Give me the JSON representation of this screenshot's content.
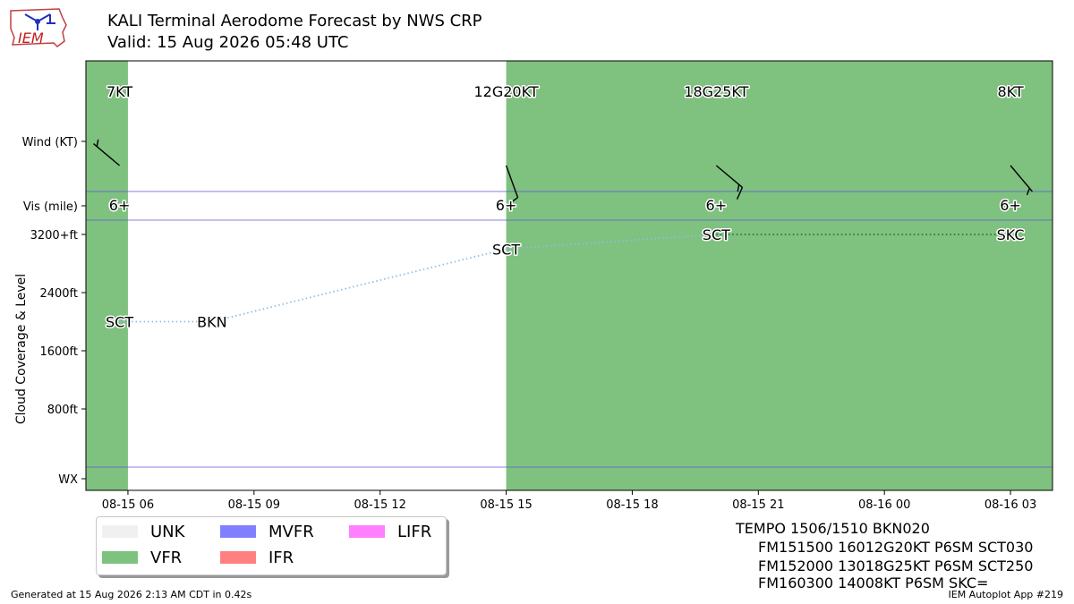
{
  "header": {
    "logo_text": "IEM",
    "title": "KALI Terminal Aerodome Forecast by NWS CRP",
    "valid": "Valid: 15 Aug 2026 05:48 UTC"
  },
  "footer": {
    "generated": "Generated at 15 Aug 2026 2:13 AM CDT in 0.42s",
    "app": "IEM Autoplot App #219"
  },
  "colors": {
    "UNK": "#f0f0f0",
    "VFR": "#7fc17f",
    "MVFR": "#8080ff",
    "IFR": "#ff8080",
    "LIFR": "#ff80ff",
    "low_cloud_line": "#8fbde0",
    "high_cloud_line": "#1e7a3c"
  },
  "legend": [
    {
      "label": "UNK",
      "color_key": "UNK"
    },
    {
      "label": "VFR",
      "color_key": "VFR"
    },
    {
      "label": "MVFR",
      "color_key": "MVFR"
    },
    {
      "label": "IFR",
      "color_key": "IFR"
    },
    {
      "label": "LIFR",
      "color_key": "LIFR"
    }
  ],
  "taf_text": [
    "TEMPO 1506/1510 BKN020",
    "FM151500 16012G20KT P6SM SCT030",
    "FM152000 13018G25KT P6SM SCT250",
    "FM160300 14008KT P6SM SKC="
  ],
  "chart_data": {
    "type": "timeline",
    "x_start": "2026-08-15 05:00",
    "x_end": "2026-08-16 04:00",
    "x_ticks": [
      {
        "time": "2026-08-15 06:00",
        "label": "08-15 06"
      },
      {
        "time": "2026-08-15 09:00",
        "label": "08-15 09"
      },
      {
        "time": "2026-08-15 12:00",
        "label": "08-15 12"
      },
      {
        "time": "2026-08-15 15:00",
        "label": "08-15 15"
      },
      {
        "time": "2026-08-15 18:00",
        "label": "08-15 18"
      },
      {
        "time": "2026-08-15 21:00",
        "label": "08-15 21"
      },
      {
        "time": "2026-08-16 00:00",
        "label": "08-16 00"
      },
      {
        "time": "2026-08-16 03:00",
        "label": "08-16 03"
      }
    ],
    "y_label": "Cloud Coverage & Level",
    "row_labels": {
      "wind": "Wind (KT)",
      "vis": "Vis (mile)",
      "wx": "WX"
    },
    "cloud_axis": {
      "ylim": [
        0,
        3500
      ],
      "ticks": [
        {
          "value": 800,
          "label": "800ft"
        },
        {
          "value": 1600,
          "label": "1600ft"
        },
        {
          "value": 2400,
          "label": "2400ft"
        },
        {
          "value": 3200,
          "label": "3200+ft"
        }
      ]
    },
    "category_bands": [
      {
        "start": "2026-08-15 05:00",
        "end": "2026-08-15 06:00",
        "category": "VFR"
      },
      {
        "start": "2026-08-15 06:00",
        "end": "2026-08-15 15:00",
        "category": "none"
      },
      {
        "start": "2026-08-15 15:00",
        "end": "2026-08-16 04:00",
        "category": "VFR"
      }
    ],
    "forecasts": [
      {
        "time": "2026-08-15 05:48",
        "wind_label": "7KT",
        "wind_dir": 310,
        "wind_speed": 7,
        "vis": "6+"
      },
      {
        "time": "2026-08-15 15:00",
        "wind_label": "12G20KT",
        "wind_dir": 160,
        "wind_speed": 12,
        "vis": "6+"
      },
      {
        "time": "2026-08-15 20:00",
        "wind_label": "18G25KT",
        "wind_dir": 130,
        "wind_speed": 18,
        "vis": "6+"
      },
      {
        "time": "2026-08-16 03:00",
        "wind_label": "8KT",
        "wind_dir": 140,
        "wind_speed": 8,
        "vis": "6+"
      }
    ],
    "cloud_points": [
      {
        "time": "2026-08-15 05:48",
        "level_ft": 2000,
        "label": "SCT",
        "line": "low"
      },
      {
        "time": "2026-08-15 08:00",
        "level_ft": 2000,
        "label": "BKN",
        "line": "low"
      },
      {
        "time": "2026-08-15 15:00",
        "level_ft": 3000,
        "label": "SCT",
        "line": "low"
      },
      {
        "time": "2026-08-15 20:00",
        "level_ft": 3200,
        "label": "SCT",
        "line": "high"
      },
      {
        "time": "2026-08-16 03:00",
        "level_ft": 3200,
        "label": "SKC",
        "line": "none"
      }
    ]
  }
}
